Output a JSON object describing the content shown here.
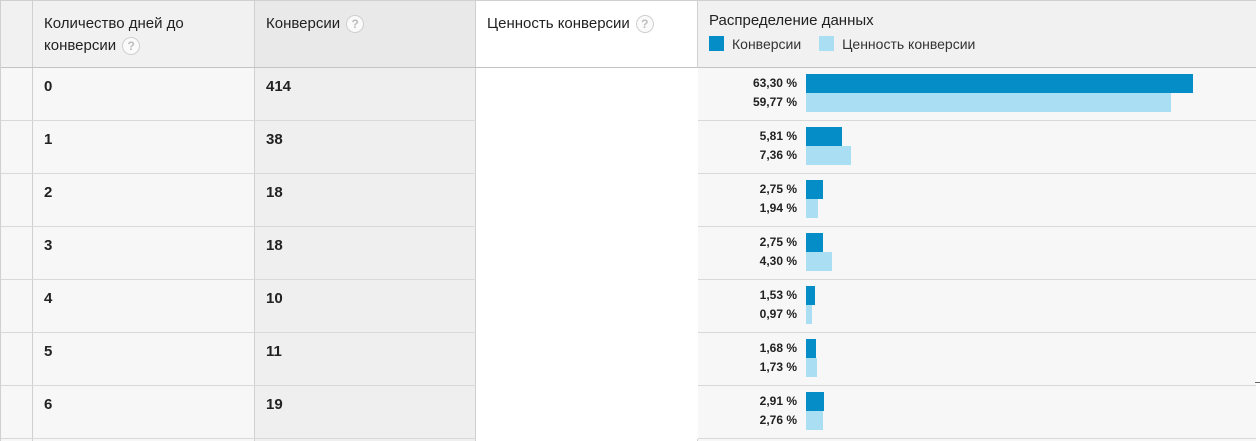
{
  "header": {
    "days_label": "Количество дней до конверсии",
    "conversions_label": "Конверсии",
    "value_label": "Ценность конверсии",
    "distribution_label": "Распределение данных",
    "help_glyph": "?",
    "legend": [
      {
        "label": "Конверсии",
        "color": "#058dc7"
      },
      {
        "label": "Ценность конверсии",
        "color": "#aadff3"
      }
    ]
  },
  "rows": [
    {
      "days": "0",
      "conversions": "414",
      "conv_pct_label": "63,30 %",
      "value_pct_label": "59,77 %",
      "conv_pct": 63.3,
      "value_pct": 59.77
    },
    {
      "days": "1",
      "conversions": "38",
      "conv_pct_label": "5,81 %",
      "value_pct_label": "7,36 %",
      "conv_pct": 5.81,
      "value_pct": 7.36
    },
    {
      "days": "2",
      "conversions": "18",
      "conv_pct_label": "2,75 %",
      "value_pct_label": "1,94 %",
      "conv_pct": 2.75,
      "value_pct": 1.94
    },
    {
      "days": "3",
      "conversions": "18",
      "conv_pct_label": "2,75 %",
      "value_pct_label": "4,30 %",
      "conv_pct": 2.75,
      "value_pct": 4.3
    },
    {
      "days": "4",
      "conversions": "10",
      "conv_pct_label": "1,53 %",
      "value_pct_label": "0,97 %",
      "conv_pct": 1.53,
      "value_pct": 0.97
    },
    {
      "days": "5",
      "conversions": "11",
      "conv_pct_label": "1,68 %",
      "value_pct_label": "1,73 %",
      "conv_pct": 1.68,
      "value_pct": 1.73
    },
    {
      "days": "6",
      "conversions": "19",
      "conv_pct_label": "2,91 %",
      "value_pct_label": "2,76 %",
      "conv_pct": 2.91,
      "value_pct": 2.76
    }
  ],
  "colors": {
    "conversions": "#058dc7",
    "value": "#aadff3"
  }
}
